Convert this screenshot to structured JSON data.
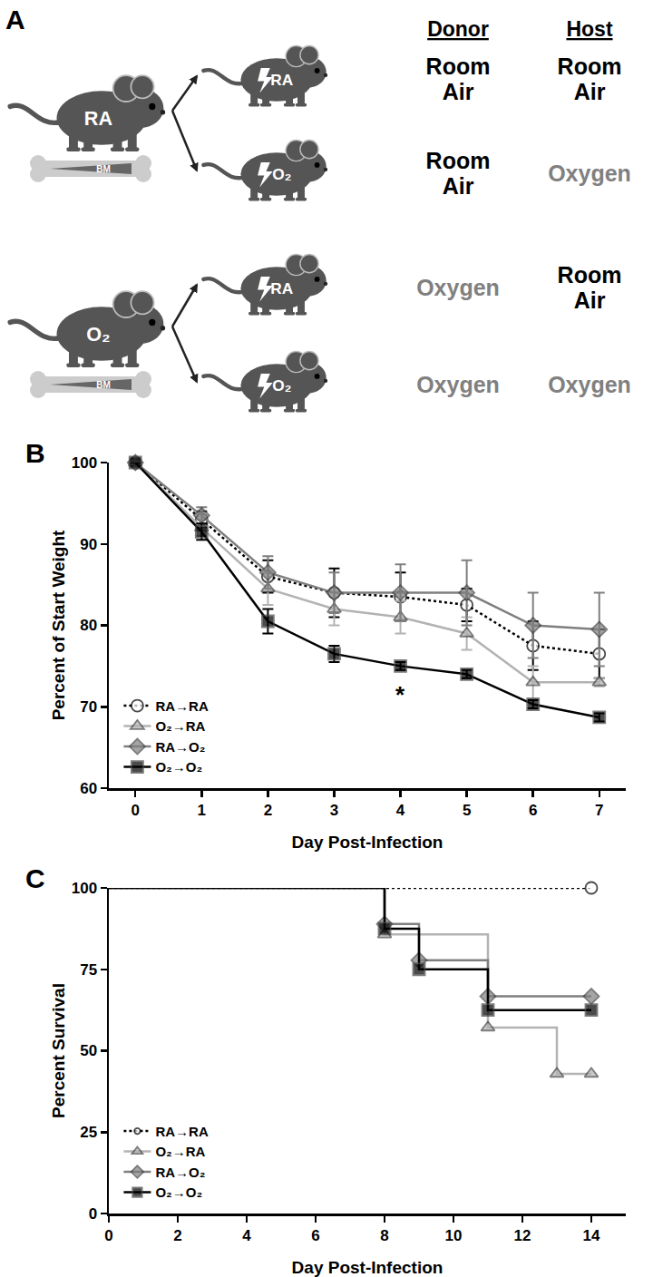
{
  "panel_a": {
    "label": "A",
    "headers": [
      "Donor",
      "Host"
    ],
    "donors": [
      {
        "label": "RA",
        "bone": "BM"
      },
      {
        "label": "O₂",
        "bone": "BM"
      }
    ],
    "rows": [
      {
        "host_label": "RA",
        "donor": {
          "text": "Room Air",
          "color": "#000000"
        },
        "host": {
          "text": "Room Air",
          "color": "#000000"
        }
      },
      {
        "host_label": "O₂",
        "donor": {
          "text": "Room Air",
          "color": "#000000"
        },
        "host": {
          "text": "Oxygen",
          "color": "#808080"
        }
      },
      {
        "host_label": "RA",
        "donor": {
          "text": "Oxygen",
          "color": "#808080"
        },
        "host": {
          "text": "Room Air",
          "color": "#000000"
        }
      },
      {
        "host_label": "O₂",
        "donor": {
          "text": "Oxygen",
          "color": "#808080"
        },
        "host": {
          "text": "Oxygen",
          "color": "#808080"
        }
      }
    ]
  },
  "chart_data": [
    {
      "label": "B",
      "type": "line",
      "x": [
        0,
        1,
        2,
        3,
        4,
        5,
        6,
        7
      ],
      "xlim": [
        -0.4,
        7.4
      ],
      "xticks": [
        0,
        1,
        2,
        3,
        4,
        5,
        6,
        7
      ],
      "ylim": [
        60,
        100
      ],
      "yticks": [
        60,
        70,
        80,
        90,
        100
      ],
      "x_label": "Day Post-Infection",
      "y_label": "Percent of Start Weight",
      "grid": false,
      "legend": "lower left",
      "annotations": [
        {
          "text": "*",
          "x": 4,
          "y": 71.5
        }
      ],
      "series": [
        {
          "name": "RA→RA",
          "color": "#000000",
          "marker": "open circle",
          "line_style": "dotted",
          "values": [
            100,
            93,
            86,
            84,
            83.5,
            82.5,
            77.5,
            76.5
          ],
          "error": [
            0,
            1,
            2,
            3,
            3,
            2,
            3,
            3
          ]
        },
        {
          "name": "O₂→RA",
          "color": "#b3b3b3",
          "marker": "triangle",
          "line_style": "solid",
          "values": [
            100,
            92,
            84.5,
            82,
            81,
            79,
            73,
            73
          ],
          "error": [
            0,
            1,
            2,
            2,
            2,
            2,
            2,
            0.5
          ]
        },
        {
          "name": "RA→O₂",
          "color": "#7f7f7f",
          "marker": "diamond",
          "line_style": "solid",
          "values": [
            100,
            93.5,
            86.5,
            84,
            84,
            84,
            80,
            79.5
          ],
          "error": [
            0,
            1,
            2,
            2.5,
            3.5,
            4,
            4,
            4.5
          ]
        },
        {
          "name": "O₂→O₂",
          "color": "#000000",
          "marker": "square",
          "line_style": "solid",
          "values": [
            100,
            91.5,
            80.5,
            76.5,
            75,
            74,
            70.3,
            68.7
          ],
          "error": [
            0,
            1,
            1.5,
            1,
            0.5,
            0.5,
            0.5,
            0.5
          ]
        }
      ]
    },
    {
      "label": "C",
      "type": "step",
      "xlim": [
        0,
        15
      ],
      "xticks": [
        0,
        2,
        4,
        6,
        8,
        10,
        12,
        14
      ],
      "ylim": [
        0,
        100
      ],
      "yticks": [
        0,
        25,
        50,
        75,
        100
      ],
      "x_label": "Day Post-Infection",
      "y_label": "Percent Survival",
      "grid": false,
      "legend": "lower left",
      "series": [
        {
          "name": "RA→RA",
          "color": "#000000",
          "marker": "open circle",
          "line_style": "dotted",
          "x": [
            0,
            14
          ],
          "values": [
            100,
            100
          ]
        },
        {
          "name": "O₂→RA",
          "color": "#b3b3b3",
          "marker": "triangle",
          "line_style": "solid",
          "x": [
            0,
            8,
            11,
            13,
            14
          ],
          "values": [
            100,
            85.7,
            57.1,
            42.9,
            42.9
          ]
        },
        {
          "name": "RA→O₂",
          "color": "#7f7f7f",
          "marker": "diamond",
          "line_style": "solid",
          "x": [
            0,
            8,
            9,
            11,
            14
          ],
          "values": [
            100,
            88.9,
            77.8,
            66.7,
            66.7
          ]
        },
        {
          "name": "O₂→O₂",
          "color": "#000000",
          "marker": "square",
          "line_style": "solid",
          "x": [
            0,
            8,
            9,
            11,
            14
          ],
          "values": [
            100,
            87.5,
            75,
            62.5,
            62.5
          ]
        }
      ]
    }
  ]
}
